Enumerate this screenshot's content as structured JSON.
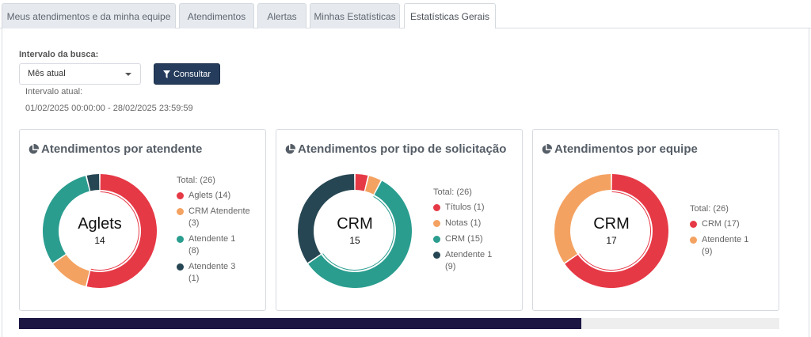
{
  "tabs": [
    {
      "label": "Meus atendimentos e da minha equipe"
    },
    {
      "label": "Atendimentos"
    },
    {
      "label": "Alertas"
    },
    {
      "label": "Minhas Estatísticas"
    },
    {
      "label": "Estatísticas Gerais"
    }
  ],
  "filter": {
    "label": "Intervalo da busca:",
    "select_value": "Mês atual",
    "button_label": "Consultar",
    "current_label": "Intervalo atual:",
    "current_value": "01/02/2025 00:00:00 - 28/02/2025 23:59:59"
  },
  "colors": {
    "red": "#e63946",
    "orange": "#f4a261",
    "teal": "#2a9d8f",
    "dark": "#264653",
    "accent_button": "#253c5c"
  },
  "cards": [
    {
      "title": "Atendimentos por atendente",
      "center_name": "Aglets",
      "center_value": "14",
      "total": "Total: (26)",
      "legend": [
        {
          "name": "Aglets",
          "count": "(14)"
        },
        {
          "name": "CRM Atendente",
          "count": "(3)"
        },
        {
          "name": "Atendente 1",
          "count": "(8)"
        },
        {
          "name": "Atendente 3",
          "count": "(1)"
        }
      ]
    },
    {
      "title": "Atendimentos por tipo de solicitação",
      "center_name": "CRM",
      "center_value": "15",
      "total": "Total: (26)",
      "legend": [
        {
          "name": "Títulos",
          "count": "(1)"
        },
        {
          "name": "Notas",
          "count": "(1)"
        },
        {
          "name": "CRM",
          "count": "(15)"
        },
        {
          "name": "Atendente 1",
          "count": "(9)"
        }
      ]
    },
    {
      "title": "Atendimentos por equipe",
      "center_name": "CRM",
      "center_value": "17",
      "total": "Total: (26)",
      "legend": [
        {
          "name": "CRM",
          "count": "(17)"
        },
        {
          "name": "Atendente 1",
          "count": "(9)"
        }
      ]
    }
  ],
  "chart_data": [
    {
      "type": "pie",
      "title": "Atendimentos por atendente",
      "categories": [
        "Aglets",
        "CRM Atendente",
        "Atendente 1",
        "Atendente 3"
      ],
      "values": [
        14,
        3,
        8,
        1
      ],
      "colors": [
        "#e63946",
        "#f4a261",
        "#2a9d8f",
        "#264653"
      ]
    },
    {
      "type": "pie",
      "title": "Atendimentos por tipo de solicitação",
      "categories": [
        "Títulos",
        "Notas",
        "CRM",
        "Atendente 1"
      ],
      "values": [
        1,
        1,
        15,
        9
      ],
      "colors": [
        "#e63946",
        "#f4a261",
        "#2a9d8f",
        "#264653"
      ]
    },
    {
      "type": "pie",
      "title": "Atendimentos por equipe",
      "categories": [
        "CRM",
        "Atendente 1"
      ],
      "values": [
        17,
        9
      ],
      "colors": [
        "#e63946",
        "#f4a261"
      ]
    }
  ],
  "progress": {
    "fraction": 0.74
  }
}
